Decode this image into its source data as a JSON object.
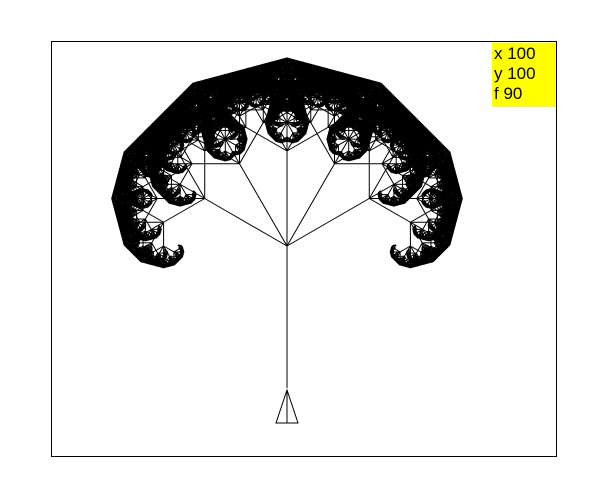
{
  "colors": {
    "background": "#ffffff",
    "frame": "#000000",
    "tree_stroke": "#000000",
    "status_panel_bg": "#ffff00",
    "status_text": "#000000"
  },
  "status": {
    "x_label": "x 100",
    "y_label": "y 100",
    "f_label": "f 90"
  },
  "turtle": {
    "icon": "turtle-triangle-icon"
  },
  "tree": {
    "depth": 7,
    "branch_count": 5,
    "spread_degrees": 120,
    "length_ratio": 0.5
  }
}
